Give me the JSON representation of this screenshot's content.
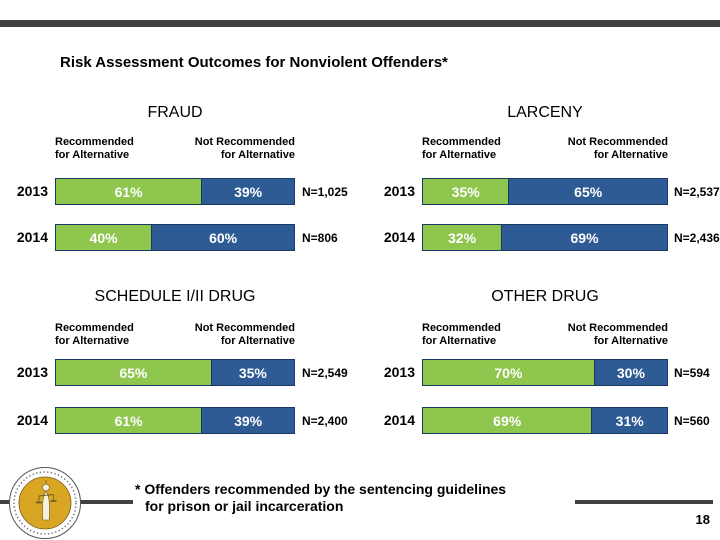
{
  "slide": {
    "title": "Risk Assessment Outcomes for Nonviolent Offenders*",
    "footnote_line1": "* Offenders recommended by the sentencing guidelines",
    "footnote_line2": "for prison or jail incarceration",
    "page_number": "18",
    "logo_name": "sentencing-commission-seal"
  },
  "labels": {
    "col_header_recommended": [
      "Recommended",
      "for Alternative"
    ],
    "col_header_not_recommended": [
      "Not Recommended",
      "for Alternative"
    ]
  },
  "colors": {
    "recommended_green": "#8EC64E",
    "not_recommended_blue": "#2E5B94",
    "bar_border_navy": "#1A3A66",
    "accent_bar_gray": "#414141",
    "logo_gold": "#D9A623"
  },
  "chart_data": [
    {
      "type": "bar",
      "stacked": true,
      "title": "FRAUD",
      "categories": [
        "2013",
        "2014"
      ],
      "series": [
        {
          "name": "Recommended for Alternative",
          "values": [
            61,
            40
          ]
        },
        {
          "name": "Not Recommended for Alternative",
          "values": [
            39,
            60
          ]
        }
      ],
      "n_labels": [
        "N=1,025",
        "N=806"
      ]
    },
    {
      "type": "bar",
      "stacked": true,
      "title": "LARCENY",
      "categories": [
        "2013",
        "2014"
      ],
      "series": [
        {
          "name": "Recommended for Alternative",
          "values": [
            35,
            32
          ]
        },
        {
          "name": "Not Recommended for Alternative",
          "values": [
            65,
            69
          ]
        }
      ],
      "n_labels": [
        "N=2,537",
        "N=2,436"
      ]
    },
    {
      "type": "bar",
      "stacked": true,
      "title": "SCHEDULE I/II DRUG",
      "categories": [
        "2013",
        "2014"
      ],
      "series": [
        {
          "name": "Recommended for Alternative",
          "values": [
            65,
            61
          ]
        },
        {
          "name": "Not Recommended for Alternative",
          "values": [
            35,
            39
          ]
        }
      ],
      "n_labels": [
        "N=2,549",
        "N=2,400"
      ]
    },
    {
      "type": "bar",
      "stacked": true,
      "title": "OTHER DRUG",
      "categories": [
        "2013",
        "2014"
      ],
      "series": [
        {
          "name": "Recommended for Alternative",
          "values": [
            70,
            69
          ]
        },
        {
          "name": "Not Recommended for Alternative",
          "values": [
            30,
            31
          ]
        }
      ],
      "n_labels": [
        "N=594",
        "N=560"
      ]
    }
  ]
}
